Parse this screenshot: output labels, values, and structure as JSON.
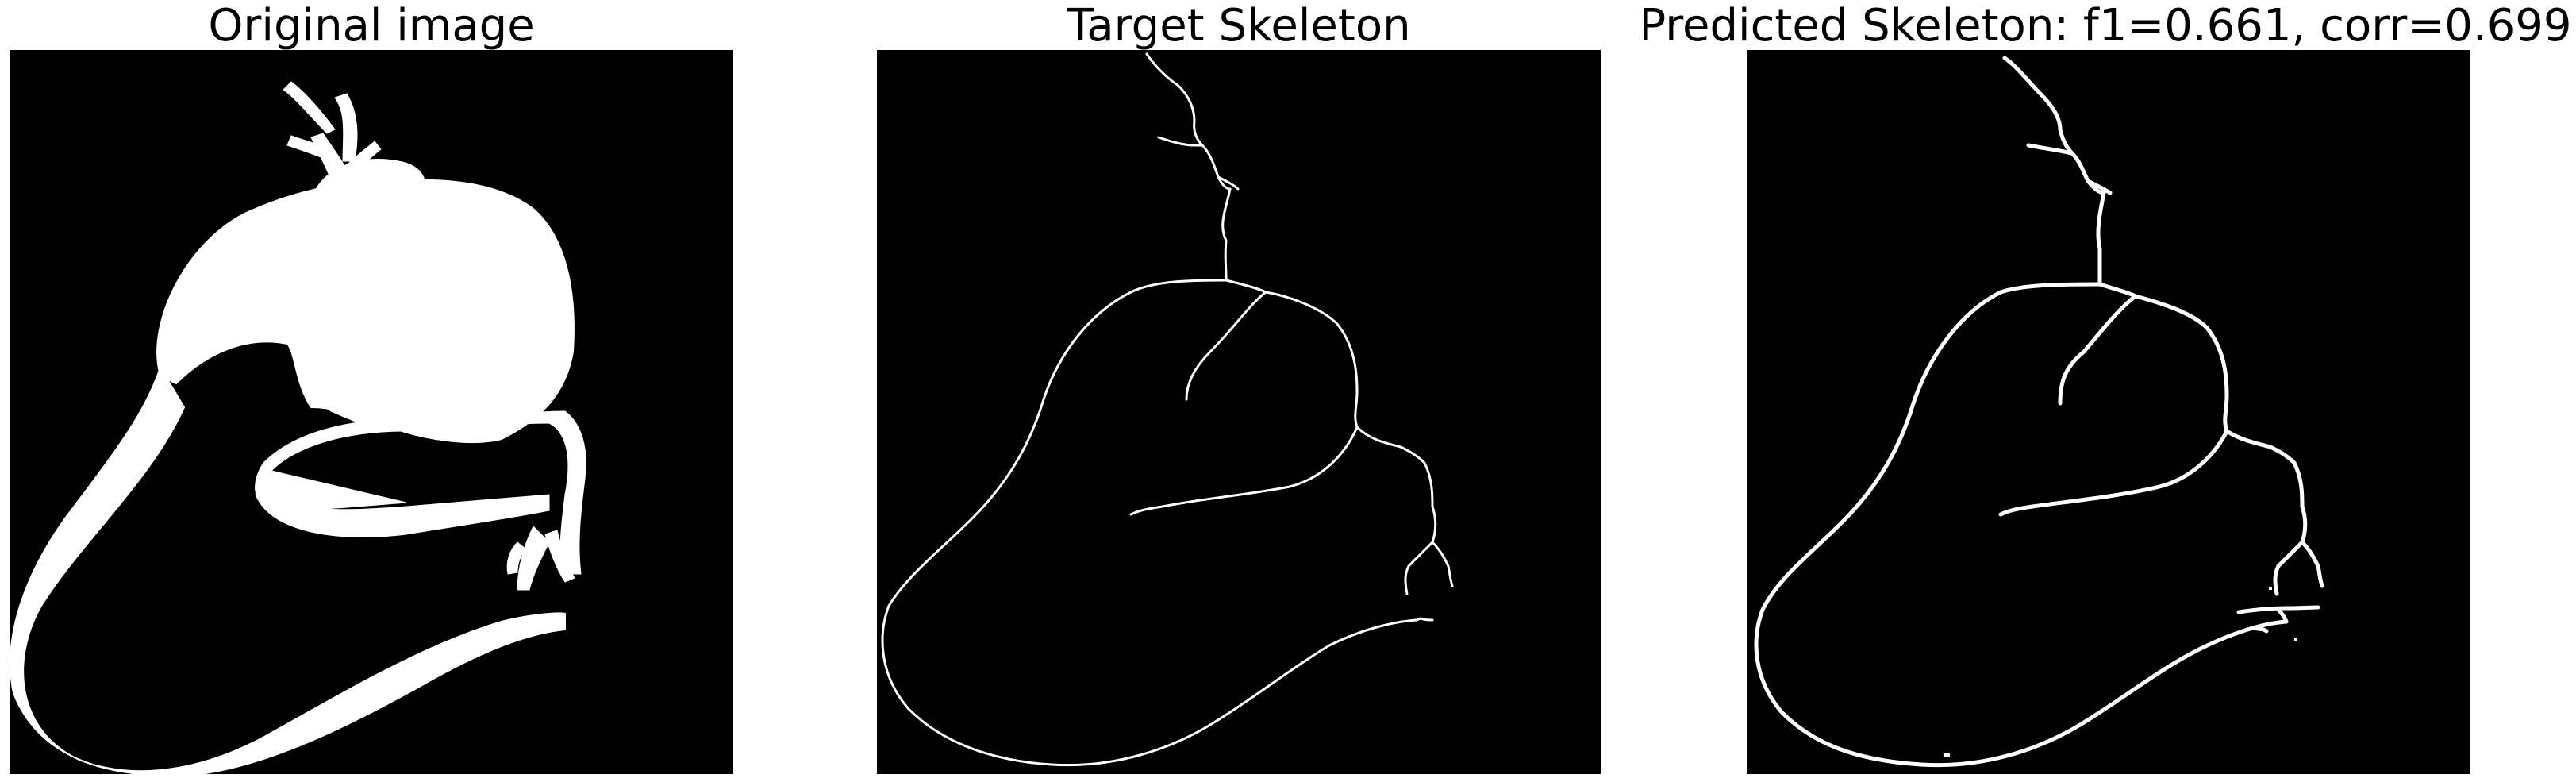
{
  "panels": [
    {
      "title": "Original image",
      "content": "white lizard silhouette on black background"
    },
    {
      "title": "Target Skeleton",
      "content": "thin white skeleton lines on black background"
    },
    {
      "title": "Predicted Skeleton: f1=0.661, corr=0.699",
      "content": "thicker white skeleton lines on black background"
    }
  ],
  "colors": {
    "background": "#000000",
    "foreground": "#ffffff",
    "page": "#ffffff",
    "title_text": "#000000"
  }
}
